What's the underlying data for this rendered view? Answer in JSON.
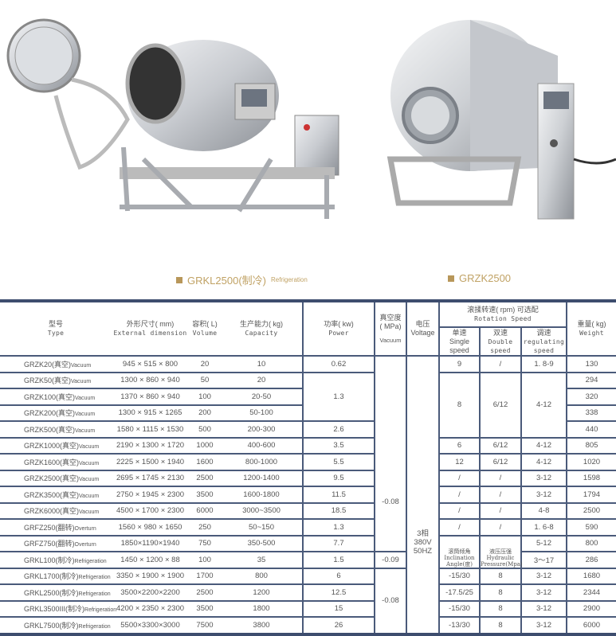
{
  "captions": [
    {
      "model": "GRKL2500(制冷)",
      "suffix": "Refrigeration"
    },
    {
      "model": "GRZK2500",
      "suffix": ""
    }
  ],
  "colors": {
    "caption": "#c0a264",
    "table_lines": "#3d4d6e"
  },
  "header": {
    "type": {
      "cn": "型号",
      "en": "Type"
    },
    "dims": {
      "cn": "外形尺寸( mm)",
      "en": "External dimension"
    },
    "volume": {
      "cn": "容积( L)",
      "en": "Volume"
    },
    "capacity": {
      "cn": "生产能力( kg)",
      "en": "Capacity"
    },
    "power": {
      "cn": "功率( kw)",
      "en": "Power"
    },
    "vacuum": {
      "cn": "真空度\n( MPa)",
      "en": "Vacuum"
    },
    "voltage": {
      "cn": "电压",
      "en": "Voltage"
    },
    "rotation": {
      "cn": "滚揉转速( rpm) 可选配",
      "en": "Rotation Speed"
    },
    "single": {
      "cn": "单速",
      "en": "Single\nspeed"
    },
    "double": {
      "cn": "双速",
      "en": "Double\nspeed"
    },
    "regulating": {
      "cn": "调速",
      "en": "regulating\nspeed"
    },
    "weight": {
      "cn": "重量( kg)",
      "en": "Weight"
    }
  },
  "alt_header": {
    "single": "滚筒倾角\nInclination\nAngle(度)",
    "double": "液压压强\nHydraulic\nPressure(Mpa)"
  },
  "rows": [
    {
      "model": "GRZK20(真空)",
      "suffix": "Vacuum",
      "dims": "945 × 515 × 800",
      "volume": "20",
      "capacity": "10",
      "power": "0.62",
      "vacuum": "-0.08",
      "voltage": "3相\n380V\n50HZ",
      "single": "9",
      "double": "/",
      "regulating": "1. 8-9",
      "weight": "130"
    },
    {
      "model": "GRZK50(真空)",
      "suffix": "Vacuum",
      "dims": "1300 × 860 × 940",
      "volume": "50",
      "capacity": "20",
      "power": "1.3",
      "single": "8",
      "double": "6/12",
      "regulating": "4-12",
      "weight": "294"
    },
    {
      "model": "GRZK100(真空)",
      "suffix": "Vacuum",
      "dims": "1370 × 860 × 940",
      "volume": "100",
      "capacity": "20-50",
      "weight": "320"
    },
    {
      "model": "GRZK200(真空)",
      "suffix": "Vacuum",
      "dims": "1300 × 915 × 1265",
      "volume": "200",
      "capacity": "50-100",
      "weight": "338"
    },
    {
      "model": "GRZK500(真空)",
      "suffix": "Vacuum",
      "dims": "1580 × 1115 × 1530",
      "volume": "500",
      "capacity": "200-300",
      "power": "2.6",
      "weight": "440"
    },
    {
      "model": "GRZK1000(真空)",
      "suffix": "Vacuum",
      "dims": "2190 × 1300 × 1720",
      "volume": "1000",
      "capacity": "400-600",
      "power": "3.5",
      "single": "6",
      "double": "6/12",
      "regulating": "4-12",
      "weight": "805"
    },
    {
      "model": "GRZK1600(真空)",
      "suffix": "Vacuum",
      "dims": "2225 × 1500 × 1940",
      "volume": "1600",
      "capacity": "800-1000",
      "power": "5.5",
      "single": "12",
      "double": "6/12",
      "regulating": "4-12",
      "weight": "1020"
    },
    {
      "model": "GRZK2500(真空)",
      "suffix": "Vacuum",
      "dims": "2695 × 1745 × 2130",
      "volume": "2500",
      "capacity": "1200-1400",
      "power": "9.5",
      "single": "/",
      "double": "/",
      "regulating": "3-12",
      "weight": "1598"
    },
    {
      "model": "GRZK3500(真空)",
      "suffix": "Vacuum",
      "dims": "2750 × 1945 × 2300",
      "volume": "3500",
      "capacity": "1600-1800",
      "power": "11.5",
      "single": "/",
      "double": "/",
      "regulating": "3-12",
      "weight": "1794"
    },
    {
      "model": "GRZK6000(真空)",
      "suffix": "Vacuum",
      "dims": "4500 × 1700 × 2300",
      "volume": "6000",
      "capacity": "3000~3500",
      "power": "18.5",
      "single": "/",
      "double": "/",
      "regulating": "4-8",
      "weight": "2500"
    },
    {
      "model": "GRFZ250(翻转)",
      "suffix": "Overturn",
      "dims": "1560 × 980 × 1650",
      "volume": "250",
      "capacity": "50~150",
      "power": "1.3",
      "single": "/",
      "double": "/",
      "regulating": "1. 6-8",
      "weight": "590"
    },
    {
      "model": "GRFZ750(翻转)",
      "suffix": "Overturn",
      "dims": "1850×1190×1940",
      "volume": "750",
      "capacity": "350-500",
      "power": "7.7",
      "regulating": "5-12",
      "weight": "800"
    },
    {
      "model": "GRKL100(制冷)",
      "suffix": "Refrigeration",
      "dims": "1450 × 1200 × 88",
      "volume": "100",
      "capacity": "35",
      "power": "1.5",
      "vacuum": "-0.09",
      "regulating": "3～17",
      "weight": "286"
    },
    {
      "model": "GRKL1700(制冷)",
      "suffix": "Refrigeration",
      "dims": "3350 × 1900 × 1900",
      "volume": "1700",
      "capacity": "800",
      "power": "6",
      "vacuum": "-0.08",
      "single": "-15/30",
      "double": "8",
      "regulating": "3-12",
      "weight": "1680"
    },
    {
      "model": "GRKL2500(制冷)",
      "suffix": "Refrigeration",
      "dims": "3500×2200×2200",
      "volume": "2500",
      "capacity": "1200",
      "power": "12.5",
      "single": "-17.5/25",
      "double": "8",
      "regulating": "3-12",
      "weight": "2344"
    },
    {
      "model": "GRKL3500III(制冷)",
      "suffix": "Refrigeration",
      "dims": "4200 × 2350 × 2300",
      "volume": "3500",
      "capacity": "1800",
      "power": "15",
      "single": "-15/30",
      "double": "8",
      "regulating": "3-12",
      "weight": "2900"
    },
    {
      "model": "GRKL7500(制冷)",
      "suffix": "Refrigeration",
      "dims": "5500×3300×3000",
      "volume": "7500",
      "capacity": "3800",
      "power": "26",
      "single": "-13/30",
      "double": "8",
      "regulating": "3-12",
      "weight": "6000"
    }
  ]
}
